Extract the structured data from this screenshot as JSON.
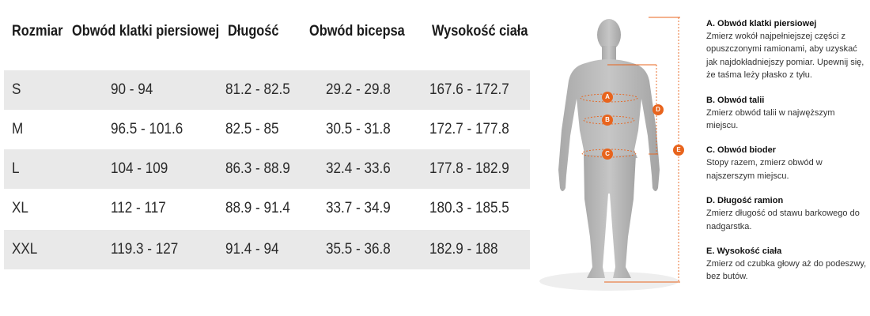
{
  "table": {
    "headers": [
      "Rozmiar",
      "Obwód klatki piersiowej",
      "Długość",
      "Obwód bicepsa",
      "Wysokość ciała"
    ],
    "rows": [
      [
        "S",
        "90 - 94",
        "81.2 - 82.5",
        "29.2 - 29.8",
        "167.6 - 172.7"
      ],
      [
        "M",
        "96.5 - 101.6",
        "82.5 - 85",
        "30.5 - 31.8",
        "172.7 - 177.8"
      ],
      [
        "L",
        "104 - 109",
        "86.3 - 88.9",
        "32.4 - 33.6",
        "177.8 - 182.9"
      ],
      [
        "XL",
        "112 - 117",
        "88.9 - 91.4",
        "33.7 - 34.9",
        "180.3 - 185.5"
      ],
      [
        "XXL",
        "119.3 - 127",
        "91.4 - 94",
        "35.5 - 36.8",
        "182.9 - 188"
      ]
    ]
  },
  "figure": {
    "markers": [
      "A",
      "B",
      "C",
      "D",
      "E"
    ],
    "accent_color": "#e8641d",
    "body_color": "#b9b9b9"
  },
  "instructions": [
    {
      "title": "A. Obwód klatki piersiowej",
      "text": "Zmierz wokół najpełniejszej części z opuszczonymi ramionami, aby uzyskać jak najdokładniejszy pomiar. Upewnij się, że taśma leży płasko z tyłu."
    },
    {
      "title": "B. Obwód talii",
      "text": "Zmierz obwód talii w najwęższym miejscu."
    },
    {
      "title": "C. Obwód bioder",
      "text": "Stopy razem, zmierz obwód w najszerszym miejscu."
    },
    {
      "title": "D. Długość ramion",
      "text": "Zmierz długość od stawu barkowego do nadgarstka."
    },
    {
      "title": "E. Wysokość ciała",
      "text": "Zmierz od czubka głowy aż do podeszwy, bez butów."
    }
  ]
}
